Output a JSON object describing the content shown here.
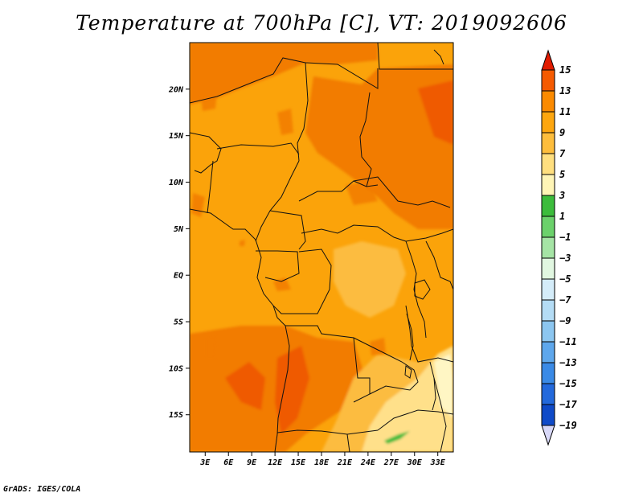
{
  "title": "Temperature at 700hPa [C], VT: 2019092606",
  "footer": "GrADS: IGES/COLA",
  "chart_data": {
    "type": "heatmap",
    "variable": "Temperature at 700hPa",
    "units": "C",
    "valid_time": "2019092606",
    "xlim": [
      1,
      35
    ],
    "ylim": [
      -19,
      25
    ],
    "x_ticks": [
      3,
      6,
      9,
      12,
      15,
      18,
      21,
      24,
      27,
      30,
      33
    ],
    "x_tick_labels": [
      "3E",
      "6E",
      "9E",
      "12E",
      "15E",
      "18E",
      "21E",
      "24E",
      "27E",
      "30E",
      "33E"
    ],
    "y_ticks": [
      20,
      15,
      10,
      5,
      0,
      -5,
      -10,
      -15
    ],
    "y_tick_labels": [
      "20N",
      "15N",
      "10N",
      "5N",
      "EQ",
      "5S",
      "10S",
      "15S"
    ],
    "colorbar": {
      "levels": [
        15,
        13,
        11,
        9,
        7,
        5,
        3,
        1,
        -1,
        -3,
        -5,
        -7,
        -9,
        -11,
        -13,
        -15,
        -17,
        -19
      ],
      "level_labels": [
        "15",
        "13",
        "11",
        "9",
        "7",
        "5",
        "3",
        "1",
        "−1",
        "−3",
        "−5",
        "−7",
        "−9",
        "−11",
        "−13",
        "−15",
        "−17",
        "−19"
      ],
      "bin_colors": [
        "#e11b00",
        "#f55a00",
        "#fb8a00",
        "#fda60f",
        "#fdbd3c",
        "#ffdf7f",
        "#fff5b6",
        "#3cbc3c",
        "#6bd16b",
        "#a5e4a5",
        "#e1f7e1",
        "#d4ecf9",
        "#b4dcf5",
        "#8cc6f0",
        "#5ea7ec",
        "#3a8ae6",
        "#2369dc",
        "#0f4ac8",
        "#083090",
        "#0a1460",
        "#d8d8f8"
      ]
    },
    "field_regions": [
      {
        "name": "background",
        "bin": "9-11",
        "color": "#fba30a"
      },
      {
        "name": "Sahara north",
        "bin": "11-13",
        "color": "#f27c00"
      },
      {
        "name": "Sudan east",
        "bin": "11-13",
        "color": "#f27c00"
      },
      {
        "name": "Angola southwest",
        "bin": "11-13",
        "color": "#f27c00"
      },
      {
        "name": "Angola core",
        "bin": "13-15",
        "color": "#ef5a00"
      },
      {
        "name": "Congo basin",
        "bin": "7-9",
        "color": "#fcbc3f"
      },
      {
        "name": "southeast",
        "bin": "5-7",
        "color": "#ffe08a"
      },
      {
        "name": "Malawi",
        "bin": "3-5",
        "color": "#fff6c4"
      },
      {
        "name": "Zambia spot",
        "bin": "1-3",
        "color": "#3cbc3c"
      }
    ]
  }
}
